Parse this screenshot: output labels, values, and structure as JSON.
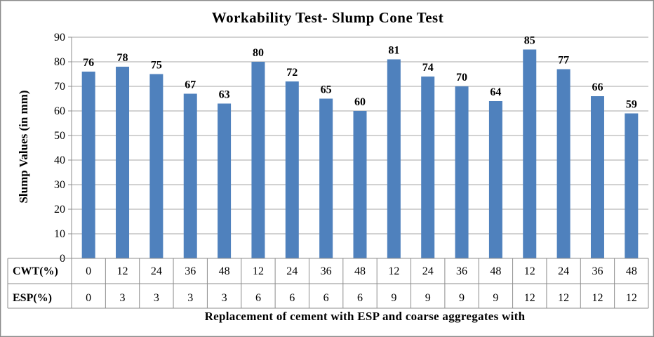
{
  "chart_data": {
    "type": "bar",
    "title": "Workability Test- Slump Cone Test",
    "ylabel": "Slump Values (in mm)",
    "xlabel": "Replacement of cement with ESP and coarse aggregates with",
    "ylim": [
      0,
      90
    ],
    "ytick_step": 10,
    "grid": "horizontal",
    "legend": "none",
    "bar_color": "#4f81bd",
    "categories": [
      {
        "cwt": "0",
        "esp": "0"
      },
      {
        "cwt": "12",
        "esp": "3"
      },
      {
        "cwt": "24",
        "esp": "3"
      },
      {
        "cwt": "36",
        "esp": "3"
      },
      {
        "cwt": "48",
        "esp": "3"
      },
      {
        "cwt": "12",
        "esp": "6"
      },
      {
        "cwt": "24",
        "esp": "6"
      },
      {
        "cwt": "36",
        "esp": "6"
      },
      {
        "cwt": "48",
        "esp": "6"
      },
      {
        "cwt": "12",
        "esp": "9"
      },
      {
        "cwt": "24",
        "esp": "9"
      },
      {
        "cwt": "36",
        "esp": "9"
      },
      {
        "cwt": "48",
        "esp": "9"
      },
      {
        "cwt": "12",
        "esp": "12"
      },
      {
        "cwt": "24",
        "esp": "12"
      },
      {
        "cwt": "36",
        "esp": "12"
      },
      {
        "cwt": "48",
        "esp": "12"
      }
    ],
    "row_labels": [
      "CWT(%)",
      "ESP(%)"
    ],
    "values": [
      76,
      78,
      75,
      67,
      63,
      80,
      72,
      65,
      60,
      81,
      74,
      70,
      64,
      85,
      77,
      66,
      59
    ]
  }
}
